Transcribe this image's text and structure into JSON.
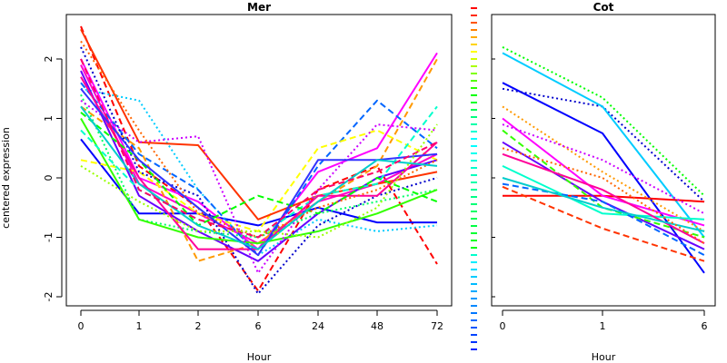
{
  "chart_data": [
    {
      "type": "line",
      "title": "Mer",
      "xlabel": "Hour",
      "ylabel": "centered expression",
      "categories": [
        "0",
        "1",
        "2",
        "6",
        "24",
        "48",
        "72"
      ],
      "y_ticks": [
        "-2",
        "-1",
        "0",
        "1",
        "2"
      ],
      "ylim": [
        -2.1,
        2.6
      ],
      "grid": false,
      "series": [
        {
          "color": "#ff0000",
          "style": "dashed",
          "values": [
            2.55,
            0.2,
            -0.5,
            -1.9,
            -0.2,
            0.2,
            -1.45
          ]
        },
        {
          "color": "#ff00cc",
          "style": "solid",
          "values": [
            1.9,
            -0.1,
            -0.6,
            -1.1,
            -0.4,
            -0.1,
            0.4
          ]
        },
        {
          "color": "#0000ff",
          "style": "solid",
          "values": [
            0.65,
            -0.6,
            -0.6,
            -0.8,
            -0.5,
            -0.75,
            -0.75
          ]
        },
        {
          "color": "#00ccff",
          "style": "dotted",
          "values": [
            1.5,
            1.3,
            -0.2,
            -1.3,
            -0.7,
            -0.9,
            -0.8
          ]
        },
        {
          "color": "#ff00ff",
          "style": "solid",
          "values": [
            2.0,
            0.0,
            -0.4,
            -1.2,
            0.1,
            0.5,
            2.1
          ]
        },
        {
          "color": "#ff9900",
          "style": "dashed",
          "values": [
            1.2,
            0.5,
            -1.4,
            -1.1,
            -0.4,
            0.2,
            2.0
          ]
        },
        {
          "color": "#0066ff",
          "style": "dashed",
          "values": [
            1.6,
            0.4,
            -0.2,
            -1.3,
            0.2,
            1.3,
            0.5
          ]
        },
        {
          "color": "#00ff66",
          "style": "dotted",
          "values": [
            1.4,
            -0.7,
            -0.9,
            -1.0,
            -0.6,
            -0.4,
            -0.2
          ]
        },
        {
          "color": "#ffff00",
          "style": "dashed",
          "values": [
            0.3,
            0.1,
            -0.6,
            -0.9,
            0.5,
            0.8,
            0.3
          ]
        },
        {
          "color": "#0000cc",
          "style": "dotted",
          "values": [
            2.2,
            0.1,
            -0.3,
            -1.95,
            -0.8,
            -0.3,
            0.0
          ]
        },
        {
          "color": "#ff3300",
          "style": "solid",
          "values": [
            2.5,
            0.6,
            0.55,
            -0.7,
            -0.3,
            -0.1,
            0.1
          ]
        },
        {
          "color": "#6600ff",
          "style": "solid",
          "values": [
            1.8,
            -0.3,
            -0.9,
            -1.4,
            -0.6,
            0.0,
            0.3
          ]
        },
        {
          "color": "#33ff00",
          "style": "solid",
          "values": [
            1.0,
            -0.7,
            -1.0,
            -1.1,
            -0.9,
            -0.6,
            -0.2
          ]
        },
        {
          "color": "#00ffcc",
          "style": "dashed",
          "values": [
            0.8,
            -0.2,
            -0.7,
            -1.0,
            -0.3,
            -0.1,
            1.2
          ]
        },
        {
          "color": "#cc00ff",
          "style": "dotted",
          "values": [
            1.3,
            0.6,
            0.7,
            -1.6,
            -0.2,
            0.9,
            0.8
          ]
        },
        {
          "color": "#ff0099",
          "style": "solid",
          "values": [
            1.7,
            0.0,
            -1.2,
            -1.2,
            -0.3,
            -0.3,
            0.6
          ]
        },
        {
          "color": "#00ff00",
          "style": "dashed",
          "values": [
            1.1,
            0.3,
            -0.8,
            -0.3,
            -0.6,
            0.0,
            -0.4
          ]
        },
        {
          "color": "#ff6600",
          "style": "dotted",
          "values": [
            2.3,
            0.8,
            -0.6,
            -1.0,
            -0.5,
            -0.2,
            0.3
          ]
        },
        {
          "color": "#3333ff",
          "style": "solid",
          "values": [
            1.5,
            0.3,
            -0.5,
            -1.3,
            0.3,
            0.3,
            0.4
          ]
        },
        {
          "color": "#00cccc",
          "style": "solid",
          "values": [
            1.2,
            -0.1,
            -0.8,
            -1.2,
            -0.4,
            0.3,
            0.2
          ]
        },
        {
          "color": "#ff0066",
          "style": "dashed",
          "values": [
            2.0,
            -0.2,
            -0.7,
            -1.0,
            -0.2,
            0.1,
            0.6
          ]
        },
        {
          "color": "#99ff00",
          "style": "dotted",
          "values": [
            0.2,
            -0.4,
            -0.9,
            -0.9,
            -1.0,
            -0.5,
            0.9
          ]
        }
      ]
    },
    {
      "type": "line",
      "title": "Cot",
      "xlabel": "Hour",
      "categories": [
        "0",
        "1",
        "6"
      ],
      "ylim": [
        -2.1,
        2.6
      ],
      "grid": false,
      "series": [
        {
          "color": "#00ff00",
          "style": "dotted",
          "values": [
            2.2,
            1.35,
            -0.3
          ]
        },
        {
          "color": "#0000ff",
          "style": "solid",
          "values": [
            1.6,
            0.75,
            -1.6
          ]
        },
        {
          "color": "#0000cc",
          "style": "dotted",
          "values": [
            1.5,
            1.2,
            -0.4
          ]
        },
        {
          "color": "#00ccff",
          "style": "solid",
          "values": [
            2.1,
            1.2,
            -1.0
          ]
        },
        {
          "color": "#ff0000",
          "style": "solid",
          "values": [
            -0.3,
            -0.3,
            -0.4
          ]
        },
        {
          "color": "#ff3300",
          "style": "dashed",
          "values": [
            -0.15,
            -0.85,
            -1.4
          ]
        },
        {
          "color": "#ff00ff",
          "style": "solid",
          "values": [
            1.0,
            -0.3,
            -0.8
          ]
        },
        {
          "color": "#6600ff",
          "style": "solid",
          "values": [
            0.6,
            -0.4,
            -1.2
          ]
        },
        {
          "color": "#33ff00",
          "style": "dashed",
          "values": [
            0.8,
            -0.5,
            -1.0
          ]
        },
        {
          "color": "#ff9900",
          "style": "dotted",
          "values": [
            1.2,
            0.1,
            -0.9
          ]
        },
        {
          "color": "#00ffcc",
          "style": "solid",
          "values": [
            0.2,
            -0.6,
            -0.7
          ]
        },
        {
          "color": "#ff0099",
          "style": "solid",
          "values": [
            0.4,
            -0.2,
            -1.1
          ]
        },
        {
          "color": "#0066ff",
          "style": "dashed",
          "values": [
            -0.1,
            -0.4,
            -1.3
          ]
        },
        {
          "color": "#cc00ff",
          "style": "dotted",
          "values": [
            0.9,
            0.3,
            -0.6
          ]
        },
        {
          "color": "#00cccc",
          "style": "solid",
          "values": [
            0.0,
            -0.5,
            -0.9
          ]
        },
        {
          "color": "#ff6600",
          "style": "dotted",
          "values": [
            0.5,
            0.0,
            -1.1
          ]
        }
      ]
    }
  ],
  "legend_strip_colors": [
    "#ff0000",
    "#ff2a00",
    "#ff5500",
    "#ff8000",
    "#ffaa00",
    "#ffd400",
    "#ffff00",
    "#d4ff00",
    "#aaff00",
    "#80ff00",
    "#55ff00",
    "#2aff00",
    "#00ff00",
    "#00ff2a",
    "#00ff55",
    "#00ff80",
    "#00ffaa",
    "#00ffd4",
    "#00ffff",
    "#00ffff",
    "#00ffee",
    "#00ffdd",
    "#00ffcc",
    "#00ffbb",
    "#00ffaa",
    "#00ff99",
    "#00ff88",
    "#00ff77",
    "#00ff66",
    "#00ff55",
    "#00ff44",
    "#00ff33",
    "#00ff22",
    "#00ff11",
    "#00ffcc",
    "#00eeff",
    "#00ddff",
    "#00ccff",
    "#00bbff",
    "#00aaff",
    "#0099ff",
    "#0088ff",
    "#0077ff",
    "#0066ff",
    "#0055ff",
    "#0044ff",
    "#0033ff",
    "#0022ff",
    "#00ccff"
  ]
}
